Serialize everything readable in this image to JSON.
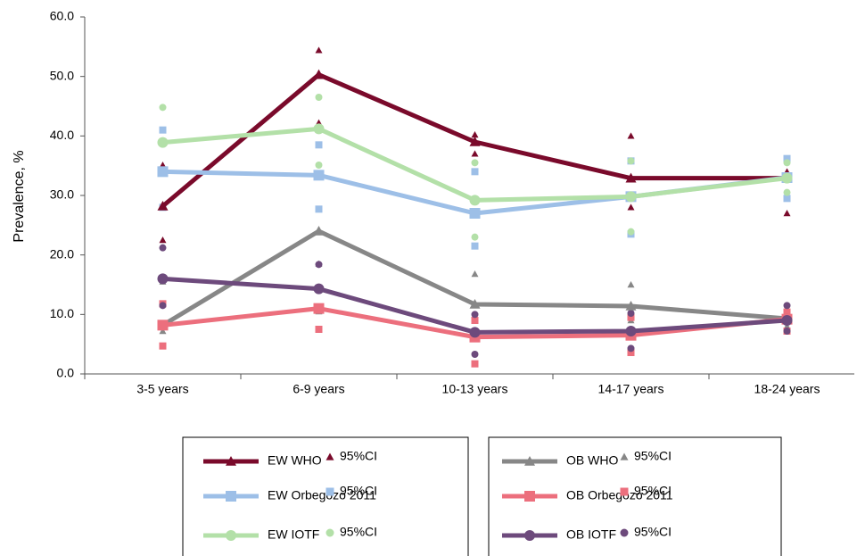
{
  "chart_data": {
    "type": "line",
    "y_label": "Prevalence, %",
    "categories": [
      "3-5 years",
      "6-9 years",
      "10-13 years",
      "14-17 years",
      "18-24 years"
    ],
    "ylim": [
      0,
      60
    ],
    "yticks": [
      {
        "value": 0,
        "label": "0.0"
      },
      {
        "value": 10,
        "label": "10.0"
      },
      {
        "value": 20,
        "label": "20.0"
      },
      {
        "value": 30,
        "label": "30.0"
      },
      {
        "value": 40,
        "label": "40.0"
      },
      {
        "value": 50,
        "label": "50.0"
      },
      {
        "value": 60,
        "label": "60.0"
      }
    ],
    "series": [
      {
        "name": "EW WHO",
        "color": "#7a0a2b",
        "marker": "triangle",
        "values": [
          28.2,
          50.3,
          39.0,
          32.9,
          32.9
        ],
        "ci_label": "95%CI",
        "ci_upper": [
          35.1,
          54.4,
          40.2,
          40.0,
          34.0
        ],
        "ci_lower": [
          22.5,
          42.2,
          37.0,
          28.0,
          27.0
        ]
      },
      {
        "name": "EW Orbegozo 2011",
        "color": "#9dbfe7",
        "marker": "square",
        "values": [
          34.0,
          33.4,
          27.0,
          29.8,
          33.0
        ],
        "ci_label": "95%CI",
        "ci_upper": [
          41.0,
          38.5,
          34.0,
          35.8,
          36.2
        ],
        "ci_lower": [
          28.0,
          27.7,
          21.5,
          23.5,
          29.5
        ]
      },
      {
        "name": "EW IOTF",
        "color": "#b3e0a8",
        "marker": "circle",
        "values": [
          38.9,
          41.2,
          29.2,
          29.8,
          32.9
        ],
        "ci_label": "95%CI",
        "ci_upper": [
          44.8,
          46.5,
          35.5,
          35.8,
          35.5
        ],
        "ci_lower": [
          34.0,
          35.1,
          23.0,
          23.9,
          30.5
        ]
      },
      {
        "name": "OB WHO",
        "color": "#878787",
        "marker": "triangle",
        "values": [
          8.2,
          24.0,
          11.7,
          11.4,
          9.3
        ],
        "ci_label": "95%CI",
        "ci_upper": [
          15.5,
          18.5,
          16.8,
          15.0,
          11.0
        ],
        "ci_lower": [
          7.2,
          10.5,
          9.5,
          9.0,
          8.0
        ]
      },
      {
        "name": "OB Orbegozo 2011",
        "color": "#ec6f7d",
        "marker": "square",
        "values": [
          8.2,
          11.0,
          6.2,
          6.5,
          9.2
        ],
        "ci_label": "95%CI",
        "ci_upper": [
          11.8,
          14.3,
          9.0,
          9.5,
          10.4
        ],
        "ci_lower": [
          4.7,
          7.5,
          1.7,
          3.6,
          7.2
        ]
      },
      {
        "name": "OB IOTF",
        "color": "#6d4a7c",
        "marker": "circle",
        "values": [
          16.0,
          14.3,
          7.0,
          7.2,
          9.0
        ],
        "ci_label": "95%CI",
        "ci_upper": [
          21.2,
          18.4,
          10.0,
          10.2,
          11.5
        ],
        "ci_lower": [
          11.5,
          10.7,
          3.3,
          4.3,
          7.2
        ]
      }
    ]
  }
}
